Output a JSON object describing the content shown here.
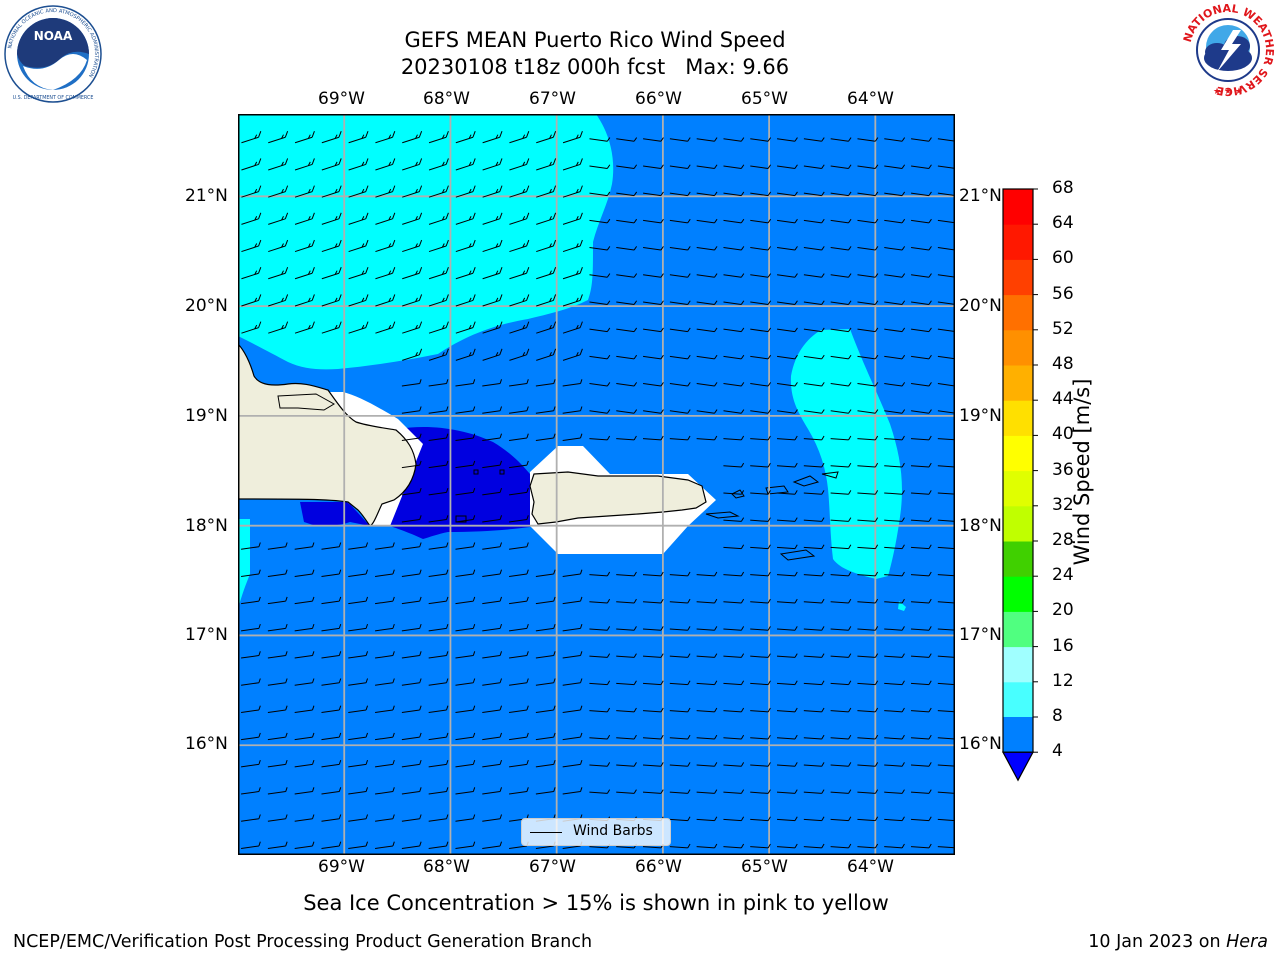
{
  "header": {
    "title_line1": "GEFS MEAN Puerto Rico Wind Speed",
    "title_line2": "20230108 t18z 000h fcst   Max: 9.66"
  },
  "logos": {
    "left": {
      "name": "NOAA",
      "ring_text": "NATIONAL OCEANIC AND ATMOSPHERIC ADMINISTRATION",
      "bottom_text": "U.S. DEPARTMENT OF COMMERCE"
    },
    "right": {
      "ring_text": "NATIONAL WEATHER SERVICE"
    }
  },
  "map": {
    "lon_labels": [
      "69°W",
      "68°W",
      "67°W",
      "66°W",
      "65°W",
      "64°W"
    ],
    "lat_labels": [
      "21°N",
      "20°N",
      "19°N",
      "18°N",
      "17°N",
      "16°N"
    ],
    "extent": {
      "lon": [
        -70.0,
        -63.25
      ],
      "lat": [
        15.0,
        21.75
      ]
    },
    "colors": {
      "wind_4_8": "#0080ff",
      "wind_8_12": "#00ffff",
      "wind_below_4": "#0000e0",
      "land": "#efeedc",
      "gridline": "#b0b0b0"
    },
    "legend": {
      "label": "Wind Barbs"
    }
  },
  "colorbar": {
    "label": "Wind Speed [m/s]",
    "ticks": [
      "4",
      "8",
      "12",
      "16",
      "20",
      "24",
      "28",
      "32",
      "36",
      "40",
      "44",
      "48",
      "52",
      "56",
      "60",
      "64",
      "68"
    ],
    "colors": [
      "#0080ff",
      "#00ffff",
      "#48ffff",
      "#a0ffff",
      "#50ff80",
      "#00ff00",
      "#40d000",
      "#c0ff00",
      "#e0ff00",
      "#ffff00",
      "#ffe000",
      "#ffb000",
      "#ff9000",
      "#ff7000",
      "#ff4000",
      "#ff1800",
      "#ff0000"
    ],
    "extend_color": "#0000ff"
  },
  "subtitle": "Sea Ice Concentration > 15% is shown in pink to yellow",
  "footer": {
    "left": "NCEP/EMC/Verification Post Processing Product Generation Branch",
    "right_prefix": "10 Jan 2023 on ",
    "right_italic": "Hera"
  }
}
